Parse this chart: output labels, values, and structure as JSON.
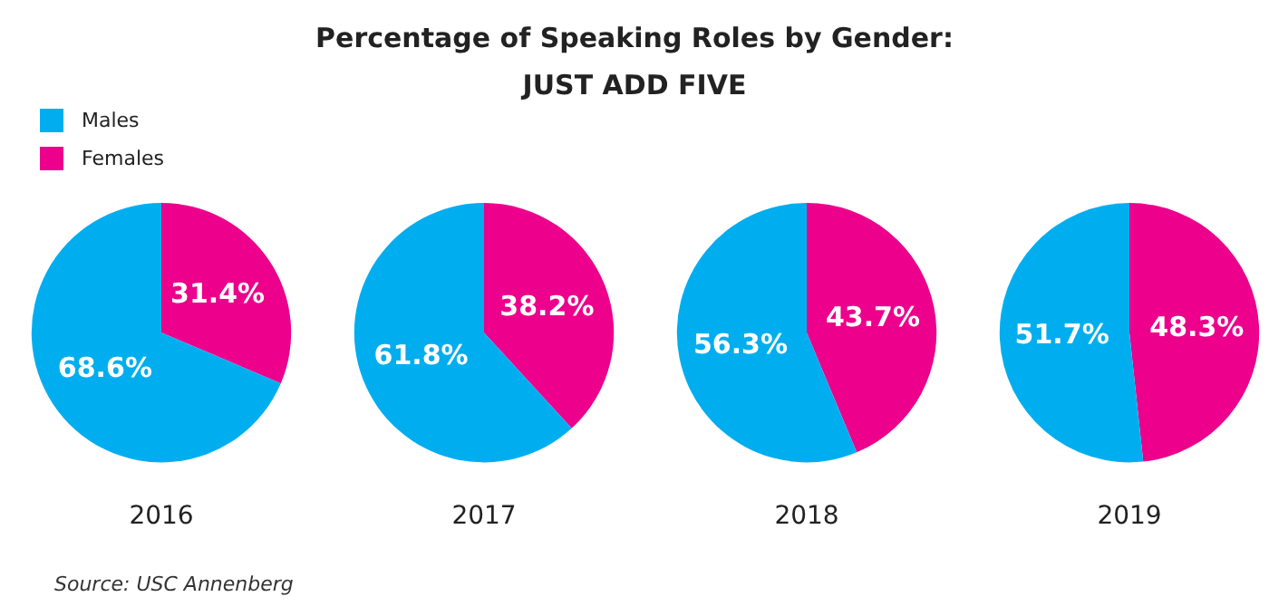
{
  "chart_data": [
    {
      "type": "pie",
      "title": "Percentage of Speaking Roles by Gender:",
      "subtitle": "JUST ADD FIVE",
      "legend": "top left",
      "annotations": [
        "Source: USC Annenberg"
      ],
      "xlabel": "2016",
      "categories": [
        "Males",
        "Females"
      ],
      "values": [
        68.6,
        31.4
      ],
      "value_labels": [
        "68.6%",
        "31.4%"
      ],
      "colors": [
        "#00aeef",
        "#ec008c"
      ]
    },
    {
      "type": "pie",
      "xlabel": "2017",
      "categories": [
        null,
        null
      ],
      "values": [
        61.8,
        38.2
      ],
      "value_labels": [
        "61.8%",
        "38.2%"
      ],
      "colors": [
        "#00aeef",
        "#ec008c"
      ]
    },
    {
      "type": "pie",
      "xlabel": "2018",
      "categories": [
        null,
        null
      ],
      "values": [
        56.3,
        43.7
      ],
      "value_labels": [
        "56.3%",
        "43.7%"
      ],
      "colors": [
        "#00aeef",
        "#ec008c"
      ]
    },
    {
      "type": "pie",
      "xlabel": "2019",
      "categories": [
        null,
        null
      ],
      "values": [
        51.7,
        48.3
      ],
      "value_labels": [
        "51.7%",
        "48.3%"
      ],
      "colors": [
        "#00aeef",
        "#ec008c"
      ]
    }
  ]
}
